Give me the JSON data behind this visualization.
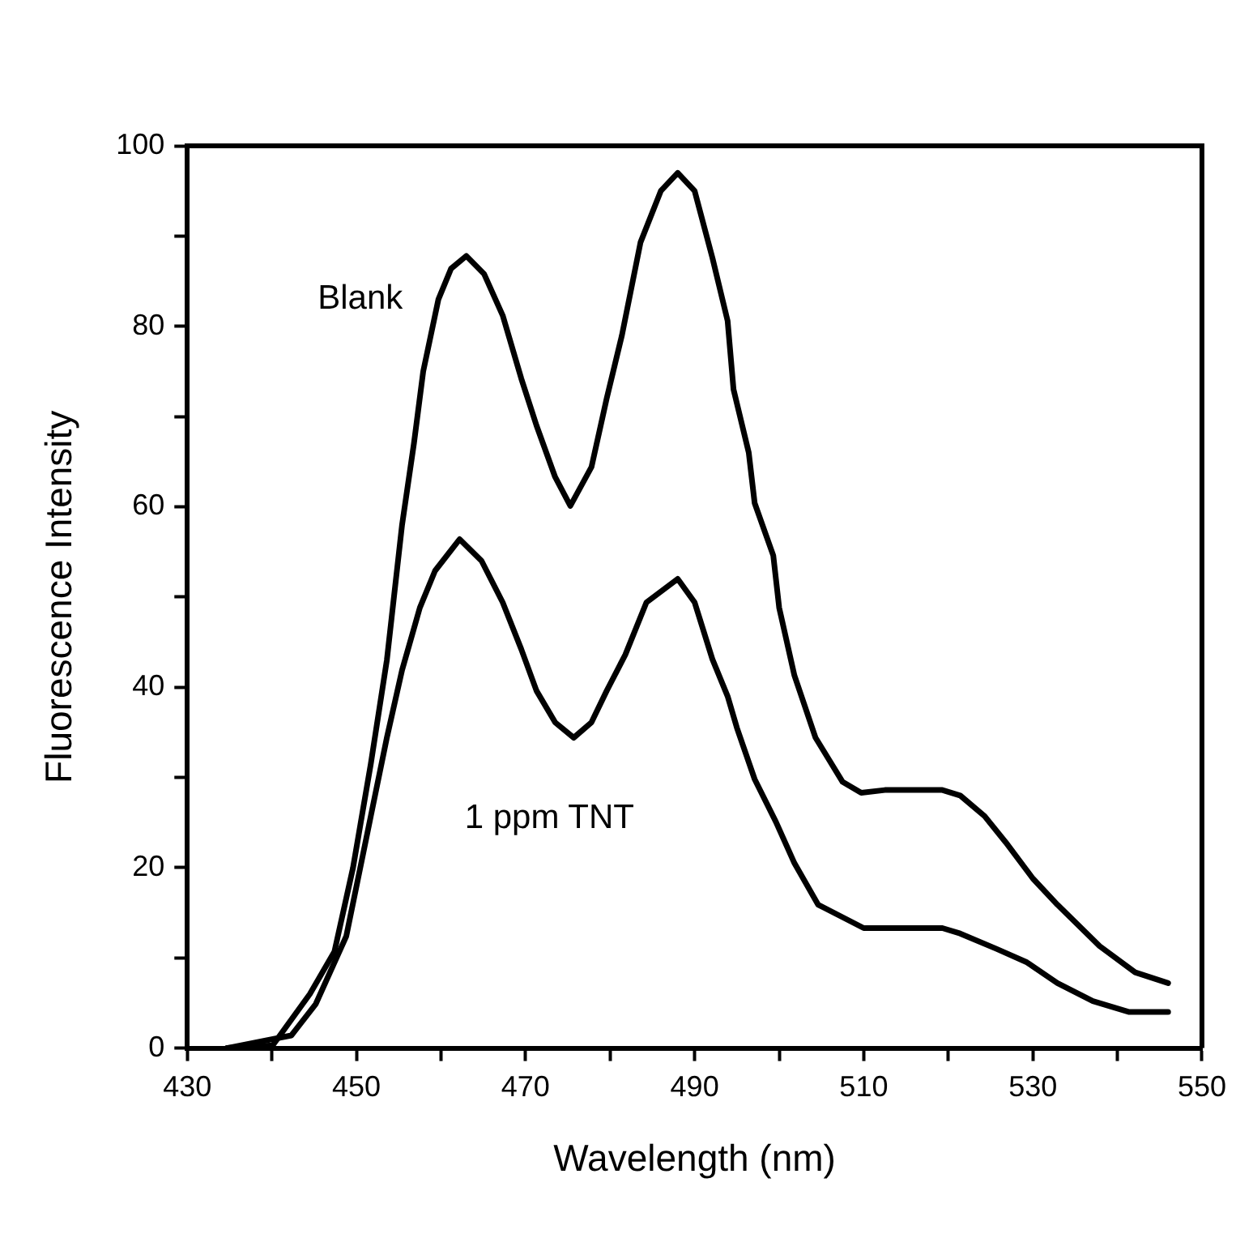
{
  "chart_data": {
    "type": "line",
    "xlabel": "Wavelength (nm)",
    "ylabel": "Fluorescence Intensity",
    "xlim": [
      430,
      550
    ],
    "ylim": [
      0,
      100
    ],
    "xticks": [
      430,
      {
        "value": 440,
        "label": null
      },
      450,
      {
        "value": 460,
        "label": null
      },
      470,
      {
        "value": 480,
        "label": null
      },
      490,
      {
        "value": 500,
        "label": null
      },
      510,
      {
        "value": 520,
        "label": null
      },
      530,
      {
        "value": 540,
        "label": null
      },
      550
    ],
    "yticks": [
      0,
      {
        "value": 10,
        "label": null
      },
      20,
      {
        "value": 30,
        "label": null
      },
      40,
      {
        "value": 50,
        "label": null
      },
      60,
      {
        "value": 70,
        "label": null
      },
      80,
      {
        "value": 90,
        "label": null
      },
      100
    ],
    "grid": false,
    "legend": false,
    "marker": "none",
    "line_style": "solid",
    "series": [
      {
        "name": "Blank",
        "color": "#000000",
        "x": [
          434.7,
          440.1,
          444.5,
          447.4,
          449.6,
          451.7,
          453.6,
          455.4,
          456.8,
          457.9,
          459.7,
          461.2,
          463,
          465.1,
          467.3,
          469.5,
          471.3,
          473.5,
          475.3,
          477.8,
          479.6,
          481.4,
          483.6,
          486,
          488,
          490,
          492.1,
          493.9,
          494.6,
          496.4,
          497.1,
          499.3,
          500,
          501.8,
          504.3,
          507.5,
          509.7,
          512.5,
          519.3,
          521.4,
          524.3,
          526.8,
          530,
          532.9,
          537.9,
          542.1,
          546
        ],
        "values": [
          0,
          0.3,
          6,
          10.7,
          20,
          31.5,
          43,
          58,
          67,
          75,
          83,
          86.4,
          87.8,
          85.8,
          81.2,
          74.2,
          69,
          63.3,
          60.1,
          64.4,
          72,
          79,
          89.3,
          95,
          97,
          95,
          87.6,
          80.6,
          73,
          66,
          60.4,
          54.6,
          48.8,
          41.3,
          34.4,
          29.5,
          28.3,
          28.6,
          28.6,
          28,
          25.7,
          22.8,
          18.8,
          15.9,
          11.3,
          8.4,
          7.2
        ]
      },
      {
        "name": "1 ppm TNT",
        "color": "#000000",
        "x": [
          434.7,
          442.3,
          445.2,
          448.8,
          451.7,
          453.6,
          455.4,
          457.5,
          459.3,
          462.2,
          464.8,
          467.3,
          469.5,
          471.3,
          473.5,
          475.7,
          477.8,
          479.6,
          481.8,
          484.3,
          488,
          490,
          492.1,
          493.9,
          495,
          497.1,
          499.6,
          501.8,
          504.6,
          510,
          519.3,
          521.4,
          525.7,
          529.3,
          532.9,
          537.1,
          541.4,
          546
        ],
        "values": [
          0,
          1.4,
          4.9,
          12.4,
          25.7,
          34.4,
          41.9,
          48.8,
          52.9,
          56.4,
          54,
          49.4,
          44.2,
          39.6,
          36.1,
          34.4,
          36.1,
          39.6,
          43.6,
          49.4,
          52,
          49.4,
          43.1,
          39,
          35.5,
          29.8,
          25.1,
          20.5,
          15.9,
          13.3,
          13.3,
          12.7,
          11,
          9.5,
          7.2,
          5.2,
          4,
          4
        ]
      }
    ]
  }
}
